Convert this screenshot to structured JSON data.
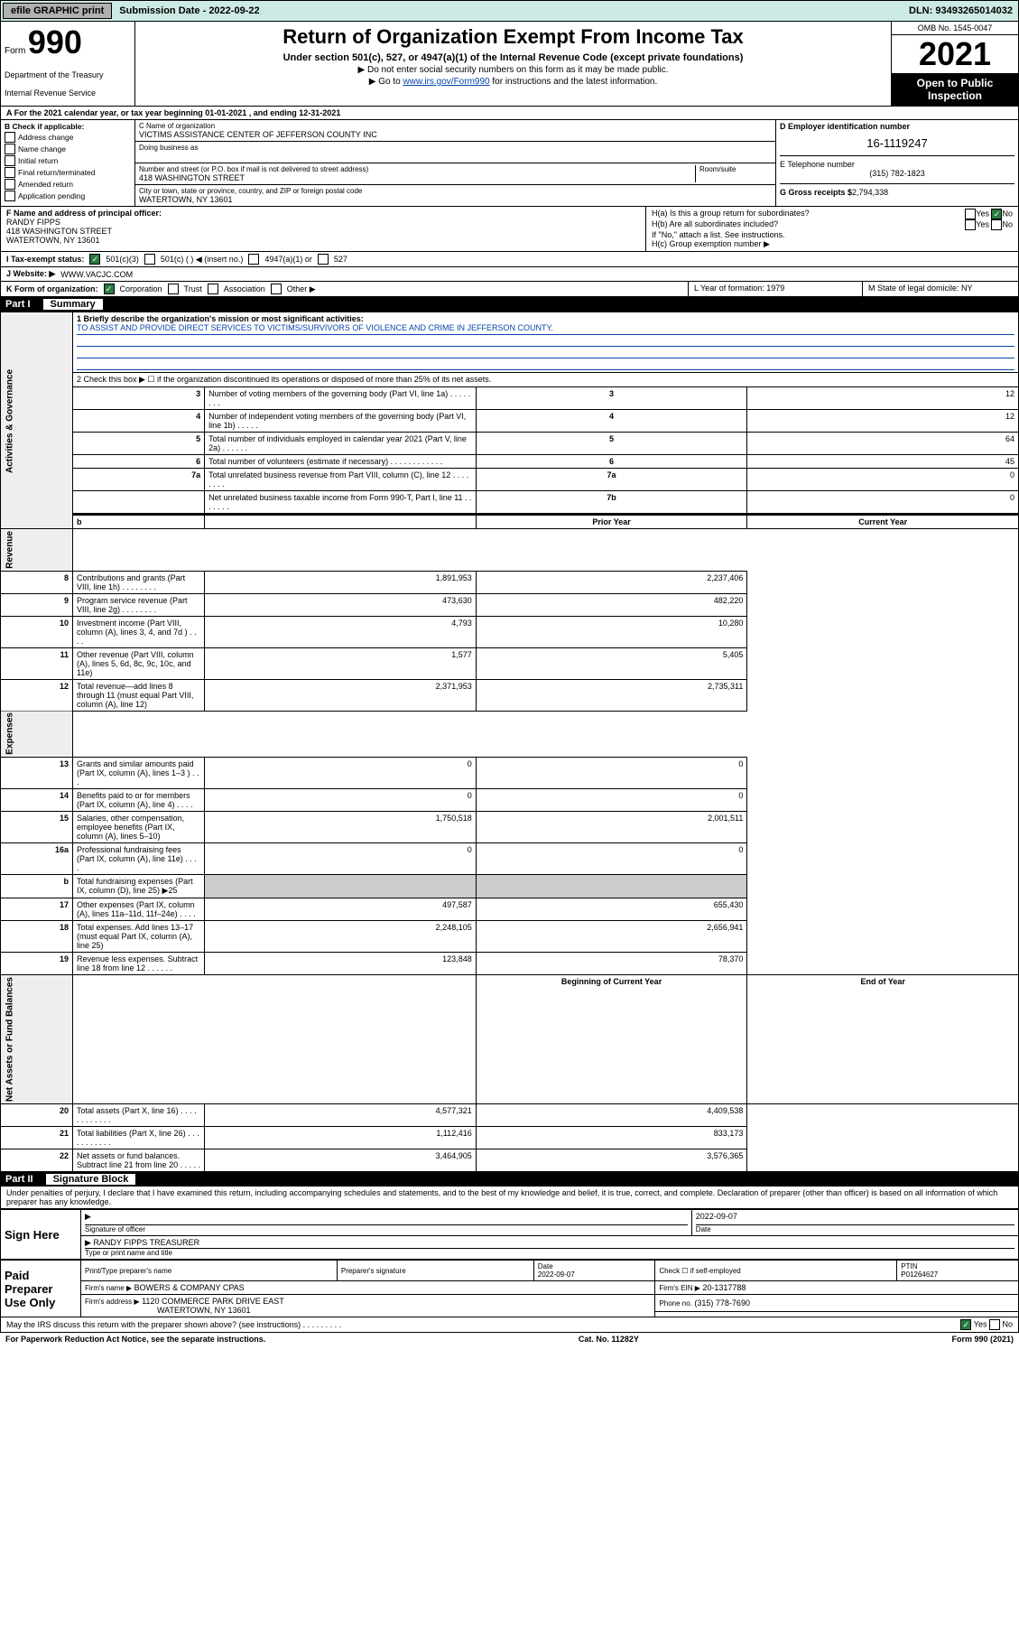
{
  "topbar": {
    "efile": "efile GRAPHIC print",
    "submission_label": "Submission Date - 2022-09-22",
    "dln": "DLN: 93493265014032"
  },
  "header": {
    "form_prefix": "Form",
    "form_number": "990",
    "title": "Return of Organization Exempt From Income Tax",
    "sub1": "Under section 501(c), 527, or 4947(a)(1) of the Internal Revenue Code (except private foundations)",
    "sub2": "▶ Do not enter social security numbers on this form as it may be made public.",
    "sub3_prefix": "▶ Go to ",
    "sub3_link": "www.irs.gov/Form990",
    "sub3_suffix": " for instructions and the latest information.",
    "dept": "Department of the Treasury",
    "irs": "Internal Revenue Service",
    "omb": "OMB No. 1545-0047",
    "year": "2021",
    "open_public1": "Open to Public",
    "open_public2": "Inspection"
  },
  "line_a": "A For the 2021 calendar year, or tax year beginning 01-01-2021   , and ending 12-31-2021",
  "col_b": {
    "header": "B Check if applicable:",
    "items": [
      "Address change",
      "Name change",
      "Initial return",
      "Final return/terminated",
      "Amended return",
      "Application pending"
    ]
  },
  "col_c": {
    "c_label": "C Name of organization",
    "org_name": "VICTIMS ASSISTANCE CENTER OF JEFFERSON COUNTY INC",
    "dba_label": "Doing business as",
    "street_label": "Number and street (or P.O. box if mail is not delivered to street address)",
    "room_label": "Room/suite",
    "street": "418 WASHINGTON STREET",
    "city_label": "City or town, state or province, country, and ZIP or foreign postal code",
    "city": "WATERTOWN, NY   13601"
  },
  "col_d": {
    "d_label": "D Employer identification number",
    "ein": "16-1119247",
    "e_label": "E Telephone number",
    "phone": "(315) 782-1823",
    "g_label": "G Gross receipts $",
    "g_val": "2,794,338"
  },
  "row_f": {
    "label": "F Name and address of principal officer:",
    "name": "RANDY FIPPS",
    "addr1": "418 WASHINGTON STREET",
    "addr2": "WATERTOWN, NY   13601"
  },
  "row_h": {
    "ha": "H(a)  Is this a group return for subordinates?",
    "hb": "H(b)  Are all subordinates included?",
    "hb_note": "If \"No,\" attach a list. See instructions.",
    "hc": "H(c)  Group exemption number ▶",
    "yes": "Yes",
    "no": "No"
  },
  "row_i": {
    "label": "I   Tax-exempt status:",
    "opt1": "501(c)(3)",
    "opt2": "501(c) (   ) ◀ (insert no.)",
    "opt3": "4947(a)(1) or",
    "opt4": "527"
  },
  "row_j": {
    "label": "J   Website: ▶",
    "value": "WWW.VACJC.COM"
  },
  "row_k": {
    "label": "K Form of organization:",
    "corp": "Corporation",
    "trust": "Trust",
    "assoc": "Association",
    "other": "Other ▶"
  },
  "row_lm": {
    "l": "L Year of formation: 1979",
    "m": "M State of legal domicile: NY"
  },
  "part1": {
    "header_part": "Part I",
    "header_title": "Summary",
    "line1_label": "1  Briefly describe the organization's mission or most significant activities:",
    "mission": "TO ASSIST AND PROVIDE DIRECT SERVICES TO VICTIMS/SURVIVORS OF VIOLENCE AND CRIME IN JEFFERSON COUNTY.",
    "line2": "2   Check this box ▶ ☐ if the organization discontinued its operations or disposed of more than 25% of its net assets.",
    "rows_3_7": [
      {
        "n": "3",
        "label": "Number of voting members of the governing body (Part VI, line 1a)  .    .    .    .    .    .    .    .",
        "box": "3",
        "val": "12"
      },
      {
        "n": "4",
        "label": "Number of independent voting members of the governing body (Part VI, line 1b)  .    .    .    .    .",
        "box": "4",
        "val": "12"
      },
      {
        "n": "5",
        "label": "Total number of individuals employed in calendar year 2021 (Part V, line 2a)  .    .    .    .    .    .",
        "box": "5",
        "val": "64"
      },
      {
        "n": "6",
        "label": "Total number of volunteers (estimate if necessary)  .    .    .    .    .    .    .    .    .    .    .    .",
        "box": "6",
        "val": "45"
      },
      {
        "n": "7a",
        "label": "Total unrelated business revenue from Part VIII, column (C), line 12  .    .    .    .    .    .    .    .",
        "box": "7a",
        "val": "0"
      },
      {
        "n": "",
        "label": "Net unrelated business taxable income from Form 990-T, Part I, line 11  .    .    .    .    .    .    .",
        "box": "7b",
        "val": "0"
      }
    ],
    "col_headers": {
      "b": "b",
      "prior": "Prior Year",
      "current": "Current Year",
      "boy": "Beginning of Current Year",
      "eoy": "End of Year"
    },
    "revenue": [
      {
        "n": "8",
        "label": "Contributions and grants (Part VIII, line 1h)  .    .    .    .    .    .    .    .",
        "p": "1,891,953",
        "c": "2,237,406"
      },
      {
        "n": "9",
        "label": "Program service revenue (Part VIII, line 2g)  .    .    .    .    .    .    .    .",
        "p": "473,630",
        "c": "482,220"
      },
      {
        "n": "10",
        "label": "Investment income (Part VIII, column (A), lines 3, 4, and 7d )  .    .    .    .",
        "p": "4,793",
        "c": "10,280"
      },
      {
        "n": "11",
        "label": "Other revenue (Part VIII, column (A), lines 5, 6d, 8c, 9c, 10c, and 11e)",
        "p": "1,577",
        "c": "5,405"
      },
      {
        "n": "12",
        "label": "Total revenue—add lines 8 through 11 (must equal Part VIII, column (A), line 12)",
        "p": "2,371,953",
        "c": "2,735,311"
      }
    ],
    "expenses": [
      {
        "n": "13",
        "label": "Grants and similar amounts paid (Part IX, column (A), lines 1–3 )  .    .    .",
        "p": "0",
        "c": "0"
      },
      {
        "n": "14",
        "label": "Benefits paid to or for members (Part IX, column (A), line 4)  .    .    .    .",
        "p": "0",
        "c": "0"
      },
      {
        "n": "15",
        "label": "Salaries, other compensation, employee benefits (Part IX, column (A), lines 5–10)",
        "p": "1,750,518",
        "c": "2,001,511"
      },
      {
        "n": "16a",
        "label": "Professional fundraising fees (Part IX, column (A), line 11e)  .    .    .    .",
        "p": "0",
        "c": "0"
      },
      {
        "n": "b",
        "label": "Total fundraising expenses (Part IX, column (D), line 25) ▶25",
        "p": "",
        "c": "",
        "grey": true
      },
      {
        "n": "17",
        "label": "Other expenses (Part IX, column (A), lines 11a–11d, 11f–24e)  .    .    .    .",
        "p": "497,587",
        "c": "655,430"
      },
      {
        "n": "18",
        "label": "Total expenses. Add lines 13–17 (must equal Part IX, column (A), line 25)",
        "p": "2,248,105",
        "c": "2,656,941"
      },
      {
        "n": "19",
        "label": "Revenue less expenses. Subtract line 18 from line 12  .    .    .    .    .    .",
        "p": "123,848",
        "c": "78,370"
      }
    ],
    "net_assets": [
      {
        "n": "20",
        "label": "Total assets (Part X, line 16)  .    .    .    .    .    .    .    .    .    .    .    .",
        "p": "4,577,321",
        "c": "4,409,538"
      },
      {
        "n": "21",
        "label": "Total liabilities (Part X, line 26)  .    .    .    .    .    .    .    .    .    .    .",
        "p": "1,112,416",
        "c": "833,173"
      },
      {
        "n": "22",
        "label": "Net assets or fund balances. Subtract line 21 from line 20  .    .    .    .    .",
        "p": "3,464,905",
        "c": "3,576,365"
      }
    ],
    "vert_labels": {
      "gov": "Activities & Governance",
      "rev": "Revenue",
      "exp": "Expenses",
      "net": "Net Assets or Fund Balances"
    }
  },
  "part2": {
    "header_part": "Part II",
    "header_title": "Signature Block",
    "perjury": "Under penalties of perjury, I declare that I have examined this return, including accompanying schedules and statements, and to the best of my knowledge and belief, it is true, correct, and complete. Declaration of preparer (other than officer) is based on all information of which preparer has any knowledge.",
    "sign_here": "Sign Here",
    "sig_officer": "Signature of officer",
    "sig_date": "2022-09-07",
    "date_label": "Date",
    "officer_name": "RANDY FIPPS  TREASURER",
    "type_name": "Type or print name and title",
    "paid_prep": "Paid Preparer Use Only",
    "print_name_label": "Print/Type preparer's name",
    "prep_sig_label": "Preparer's signature",
    "prep_date": "2022-09-07",
    "check_self": "Check ☐ if self-employed",
    "ptin_label": "PTIN",
    "ptin": "P01264627",
    "firm_name_label": "Firm's name     ▶",
    "firm_name": "BOWERS & COMPANY CPAS",
    "firm_ein_label": "Firm's EIN ▶",
    "firm_ein": "20-1317788",
    "firm_addr_label": "Firm's address ▶",
    "firm_addr1": "1120 COMMERCE PARK DRIVE EAST",
    "firm_addr2": "WATERTOWN, NY   13601",
    "phone_label": "Phone no.",
    "phone": "(315) 778-7690",
    "discuss": "May the IRS discuss this return with the preparer shown above? (see instructions)  .     .     .     .     .     .     .     .     .",
    "discuss_yes": "Yes",
    "discuss_no": "No"
  },
  "footer": {
    "left": "For Paperwork Reduction Act Notice, see the separate instructions.",
    "mid": "Cat. No. 11282Y",
    "right": "Form 990 (2021)"
  }
}
